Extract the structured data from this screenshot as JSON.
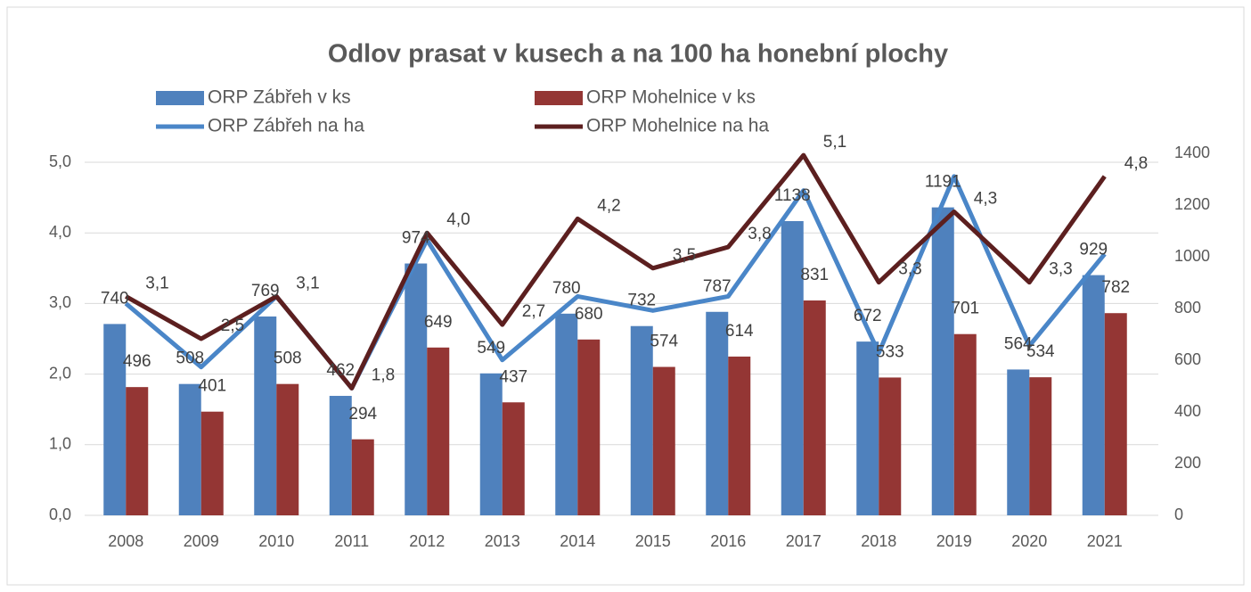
{
  "chart_data": {
    "type": "bar",
    "title": "Odlov prasat v kusech a na 100 ha honební plochy",
    "categories": [
      "2008",
      "2009",
      "2010",
      "2011",
      "2012",
      "2013",
      "2014",
      "2015",
      "2016",
      "2017",
      "2018",
      "2019",
      "2020",
      "2021"
    ],
    "series": [
      {
        "name": "ORP Zábřeh v ks",
        "type": "bar",
        "axis": "y2",
        "color": "#4f81bd",
        "values": [
          740,
          508,
          769,
          462,
          974,
          549,
          780,
          732,
          787,
          1138,
          672,
          1191,
          564,
          929
        ]
      },
      {
        "name": "ORP Mohelnice v ks",
        "type": "bar",
        "axis": "y2",
        "color": "#943634",
        "values": [
          496,
          401,
          508,
          294,
          649,
          437,
          680,
          574,
          614,
          831,
          533,
          701,
          534,
          782
        ]
      },
      {
        "name": "ORP Zábřeh na ha",
        "type": "line",
        "color": "#4a86c8",
        "values": [
          3.0,
          2.1,
          3.1,
          1.8,
          3.9,
          2.2,
          3.1,
          2.9,
          3.1,
          4.6,
          2.3,
          4.8,
          2.4,
          3.7
        ]
      },
      {
        "name": "ORP Mohelnice na ha",
        "type": "line",
        "color": "#5c1f1f",
        "values": [
          3.1,
          2.5,
          3.1,
          1.8,
          4.0,
          2.7,
          4.2,
          3.5,
          3.8,
          5.1,
          3.3,
          4.3,
          3.3,
          4.8
        ],
        "value_labels": [
          "3,1",
          "2,5",
          "3,1",
          "1,8",
          "4,0",
          "2,7",
          "4,2",
          "3,5",
          "3,8",
          "5,1",
          "3,3",
          "4,3",
          "3,3",
          "4,8"
        ]
      }
    ],
    "ylim": [
      0,
      5
    ],
    "yticks": [
      {
        "value": 0,
        "label": "0,0"
      },
      {
        "value": 1,
        "label": "1,0"
      },
      {
        "value": 2,
        "label": "2,0"
      },
      {
        "value": 3,
        "label": "3,0"
      },
      {
        "value": 4,
        "label": "4,0"
      },
      {
        "value": 5,
        "label": "5,0"
      }
    ],
    "y2lim": [
      0,
      1400
    ],
    "y2ticks": [
      0,
      200,
      400,
      600,
      800,
      1000,
      1200,
      1400
    ],
    "grid": true,
    "legend": "top"
  }
}
